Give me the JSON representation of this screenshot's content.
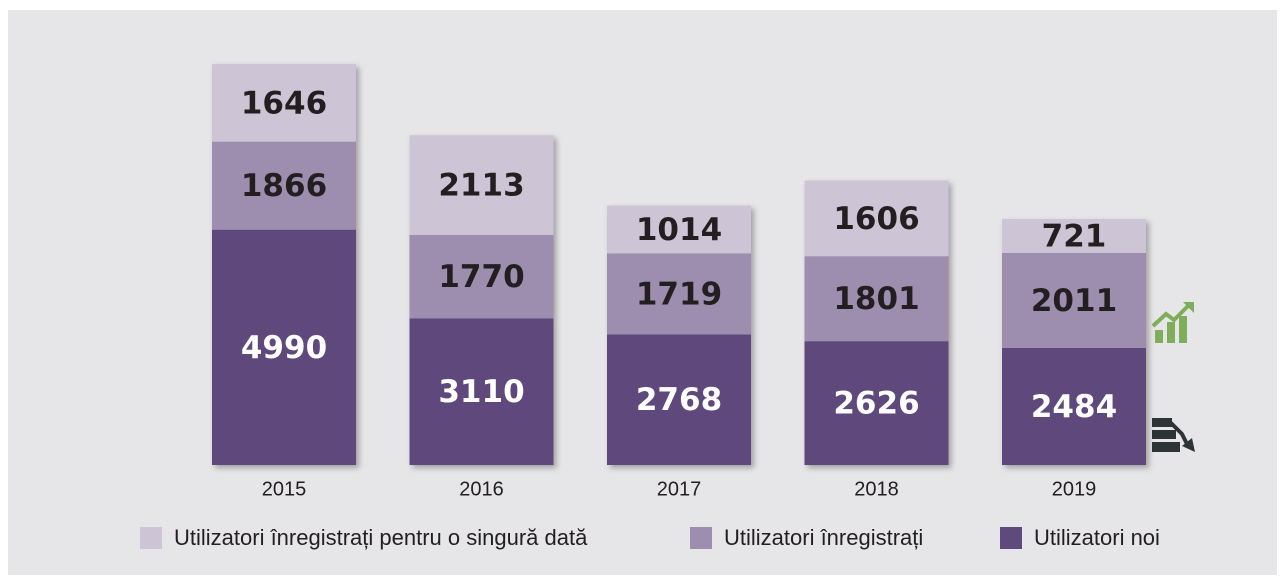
{
  "chart_data": {
    "type": "stacked_bar",
    "categories": [
      "2015",
      "2016",
      "2017",
      "2018",
      "2019"
    ],
    "series": [
      {
        "name": "Utilizatori înregistrați pentru o singură dată",
        "color": "#cdc5d6",
        "values": [
          1646,
          2113,
          1014,
          1606,
          721
        ]
      },
      {
        "name": "Utilizatori înregistrați",
        "color": "#9d8daf",
        "values": [
          1866,
          1770,
          1719,
          1801,
          2011
        ]
      },
      {
        "name": "Utilizatori noi",
        "color": "#5e4a7b",
        "values": [
          4990,
          3110,
          2768,
          2626,
          2484
        ]
      }
    ]
  }
}
